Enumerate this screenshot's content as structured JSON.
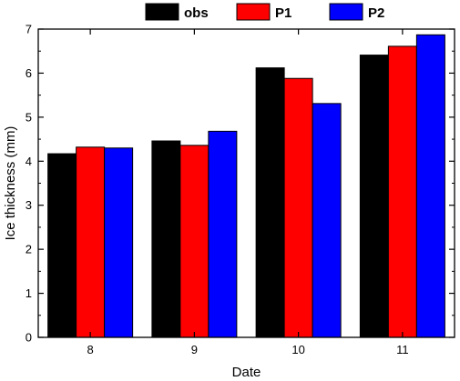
{
  "chart_data": {
    "type": "bar",
    "xlabel": "Date",
    "ylabel": "Ice thickness (mm)",
    "categories": [
      "8",
      "9",
      "10",
      "11"
    ],
    "ylim": [
      0,
      7
    ],
    "yticks": [
      "0",
      "1",
      "2",
      "3",
      "4",
      "5",
      "6",
      "7"
    ],
    "legend_position": "top",
    "series": [
      {
        "name": "obs",
        "color": "#000000",
        "values": [
          4.17,
          4.46,
          6.12,
          6.41
        ]
      },
      {
        "name": "P1",
        "color": "#ff0000",
        "values": [
          4.32,
          4.36,
          5.88,
          6.61
        ]
      },
      {
        "name": "P2",
        "color": "#0000ff",
        "values": [
          4.3,
          4.68,
          5.31,
          6.87
        ]
      }
    ]
  }
}
